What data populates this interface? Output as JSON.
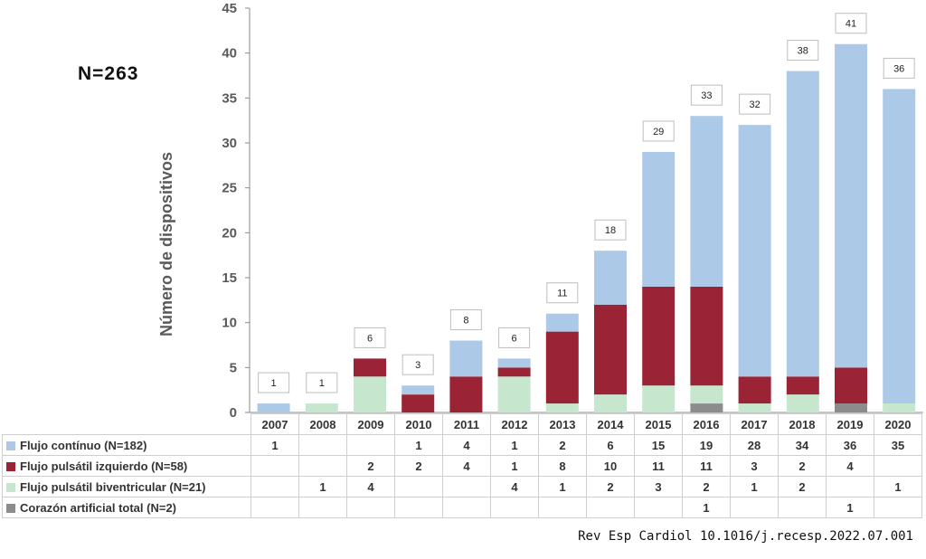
{
  "n_label": "N=263",
  "citation": "Rev Esp Cardiol 10.1016/j.recesp.2022.07.001",
  "chart_data": {
    "type": "bar",
    "stacked": true,
    "ylabel": "Número de dispositivos",
    "ylim": [
      0,
      45
    ],
    "yticks": [
      0,
      5,
      10,
      15,
      20,
      25,
      30,
      35,
      40,
      45
    ],
    "grid": false,
    "legend_placement": "table-below",
    "categories": [
      "2007",
      "2008",
      "2009",
      "2010",
      "2011",
      "2012",
      "2013",
      "2014",
      "2015",
      "2016",
      "2017",
      "2018",
      "2019",
      "2020"
    ],
    "totals": [
      1,
      1,
      6,
      3,
      8,
      6,
      11,
      18,
      29,
      33,
      32,
      38,
      41,
      36
    ],
    "series": [
      {
        "name": "Corazón artificial total (N=2)",
        "color": "#8c8c8c",
        "values": [
          null,
          null,
          null,
          null,
          null,
          null,
          null,
          null,
          null,
          1,
          null,
          null,
          1,
          null
        ]
      },
      {
        "name": "Flujo pulsátil biventricular (N=21)",
        "color": "#c6e6cd",
        "values": [
          null,
          1,
          4,
          null,
          null,
          4,
          1,
          2,
          3,
          2,
          1,
          2,
          null,
          1
        ]
      },
      {
        "name": "Flujo pulsátil izquierdo (N=58)",
        "color": "#9a2335",
        "values": [
          null,
          null,
          2,
          2,
          4,
          1,
          8,
          10,
          11,
          11,
          3,
          2,
          4,
          null
        ]
      },
      {
        "name": "Flujo contínuo (N=182)",
        "color": "#adc9e8",
        "values": [
          1,
          null,
          null,
          1,
          4,
          1,
          2,
          6,
          15,
          19,
          28,
          34,
          36,
          35
        ]
      }
    ],
    "table_order": [
      3,
      2,
      1,
      0
    ]
  }
}
